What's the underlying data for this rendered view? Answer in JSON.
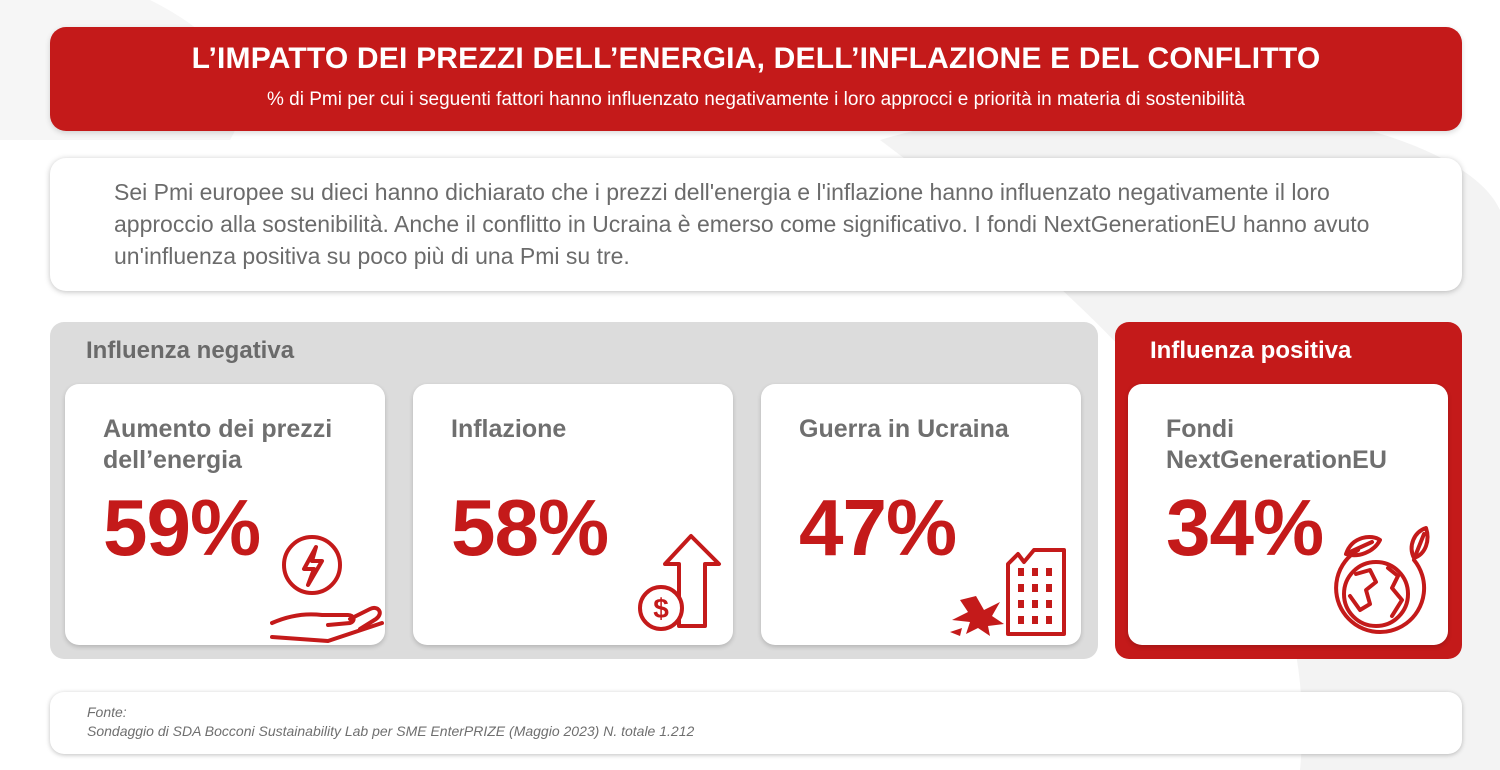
{
  "header": {
    "title": "L’IMPATTO DEI PREZZI DELL’ENERGIA, DELL’INFLAZIONE E DEL CONFLITTO",
    "subtitle": "% di Pmi per cui i seguenti fattori hanno influenzato negativamente i loro approcci e priorità in materia di sostenibilità"
  },
  "intro": {
    "text": "Sei Pmi europee su dieci hanno dichiarato che i prezzi dell'energia e l'inflazione hanno influenzato negativamente il loro approccio alla sostenibilità. Anche il conflitto in Ucraina è emerso come significativo. I fondi NextGenerationEU hanno avuto un'influenza positiva su poco più di una Pmi su tre."
  },
  "negative": {
    "title": "Influenza negativa",
    "cards": [
      {
        "label": "Aumento dei prezzi dell’energia",
        "value": "59%",
        "icon": "energy-hand-icon"
      },
      {
        "label": "Inflazione",
        "value": "58%",
        "icon": "dollar-arrow-up-icon"
      },
      {
        "label": "Guerra in Ucraina",
        "value": "47%",
        "icon": "damaged-building-icon"
      }
    ]
  },
  "positive": {
    "title": "Influenza positiva",
    "cards": [
      {
        "label": "Fondi NextGenerationEU",
        "value": "34%",
        "icon": "green-globe-icon"
      }
    ]
  },
  "footer": {
    "label": "Fonte:",
    "text": "Sondaggio di SDA Bocconi Sustainability Lab per SME EnterPRIZE (Maggio 2023) N. totale 1.212"
  },
  "colors": {
    "accent": "#c41a1a",
    "panel_gray": "#dcdcdc",
    "text_gray": "#6f6f6f"
  }
}
